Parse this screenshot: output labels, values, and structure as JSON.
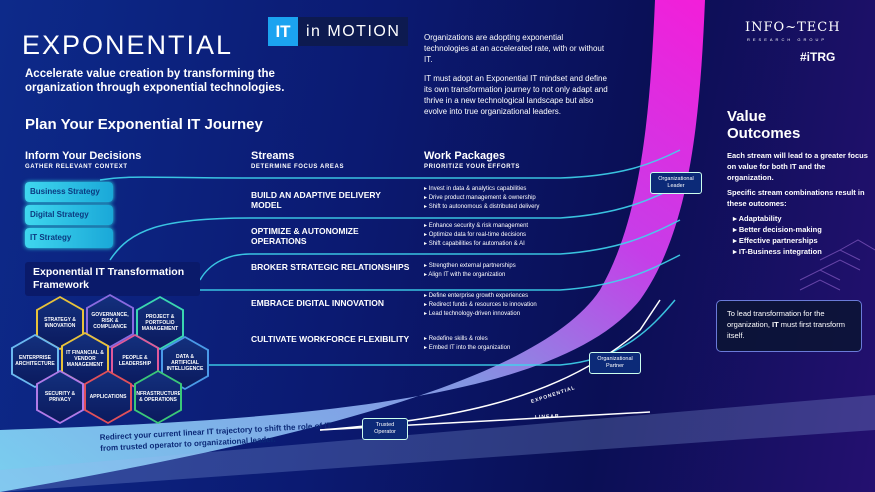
{
  "header": {
    "title": "EXPONENTIAL",
    "badge_it": "IT",
    "badge_text": "in MOTION",
    "tagline": "Accelerate value creation by transforming the organization through exponential technologies.",
    "plan_title": "Plan Your Exponential IT Journey"
  },
  "intro": [
    "Organizations are adopting exponential technologies at an accelerated rate, with or without IT.",
    "IT must adopt an Exponential IT mindset and define its own transformation journey to not only adapt and thrive in a new technological landscape but also evolve into true organizational leaders."
  ],
  "brand": {
    "name": "INFO~TECH",
    "sub": "RESEARCH GROUP",
    "tag": "#iTRG"
  },
  "columns": {
    "inform": {
      "title": "Inform Your Decisions",
      "sub": "GATHER RELEVANT CONTEXT"
    },
    "streams": {
      "title": "Streams",
      "sub": "DETERMINE FOCUS AREAS"
    },
    "work": {
      "title": "Work Packages",
      "sub": "PRIORITIZE YOUR EFFORTS"
    }
  },
  "inputs": [
    "Business Strategy",
    "Digital Strategy",
    "IT Strategy"
  ],
  "framework": {
    "title": "Exponential IT Transformation Framework",
    "hexes": [
      {
        "label": "STRATEGY & INNOVATION",
        "color": "#e8c23a"
      },
      {
        "label": "GOVERNANCE, RISK & COMPLIANCE",
        "color": "#8a6ae0"
      },
      {
        "label": "PROJECT & PORTFOLIO MANAGEMENT",
        "color": "#3ad6b0"
      },
      {
        "label": "ENTERPRISE ARCHITECTURE",
        "color": "#6ab8f0"
      },
      {
        "label": "IT FINANCIAL & VENDOR MANAGEMENT",
        "color": "#e8c23a"
      },
      {
        "label": "PEOPLE & LEADERSHIP",
        "color": "#e05a9a"
      },
      {
        "label": "DATA & ARTIFICIAL INTELLIGENCE",
        "color": "#4a9ae8"
      },
      {
        "label": "SECURITY & PRIVACY",
        "color": "#b07ae8"
      },
      {
        "label": "APPLICATIONS",
        "color": "#e0505a"
      },
      {
        "label": "INFRASTRUCTURE & OPERATIONS",
        "color": "#3ac878"
      }
    ]
  },
  "streams": [
    {
      "name": "BUILD AN ADAPTIVE DELIVERY MODEL",
      "packages": [
        "Invest in data & analytics capabilities",
        "Drive product management & ownership",
        "Shift to autonomous & distributed delivery"
      ]
    },
    {
      "name": "OPTIMIZE & AUTONOMIZE OPERATIONS",
      "packages": [
        "Enhance security & risk management",
        "Optimize data for real-time decisions",
        "Shift capabilities for automation & AI"
      ]
    },
    {
      "name": "BROKER STRATEGIC RELATIONSHIPS",
      "packages": [
        "Strengthen external partnerships",
        "Align IT with the organization"
      ]
    },
    {
      "name": "EMBRACE DIGITAL INNOVATION",
      "packages": [
        "Define enterprise growth experiences",
        "Redirect funds & resources to innovation",
        "Lead technology-driven innovation"
      ]
    },
    {
      "name": "CULTIVATE WORKFORCE FLEXIBILITY",
      "packages": [
        "Redefine skills & roles",
        "Embed IT into the organization"
      ]
    }
  ],
  "trajectory": {
    "roles": [
      "Trusted Operator",
      "Organizational Partner",
      "Organizational Leader"
    ],
    "exponential": "EXPONENTIAL",
    "linear": "LINEAR",
    "note": "Redirect your current linear IT trajectory to shift the role of IT from trusted operator to organizational leader."
  },
  "outcomes": {
    "title": "Value Outcomes",
    "p1": "Each stream will lead to a greater focus on value for both IT and the organization.",
    "p2": "Specific stream combinations result in these outcomes:",
    "items": [
      "Adaptability",
      "Better decision-making",
      "Effective partnerships",
      "IT-Business integration"
    ],
    "callout_pre": "To lead transformation for the organization, ",
    "callout_bold": "IT",
    "callout_post": " must first transform itself."
  },
  "colors": {
    "magenta": "#ff1fe0",
    "cyan": "#3fd6ee",
    "navy": "#0b1670"
  }
}
